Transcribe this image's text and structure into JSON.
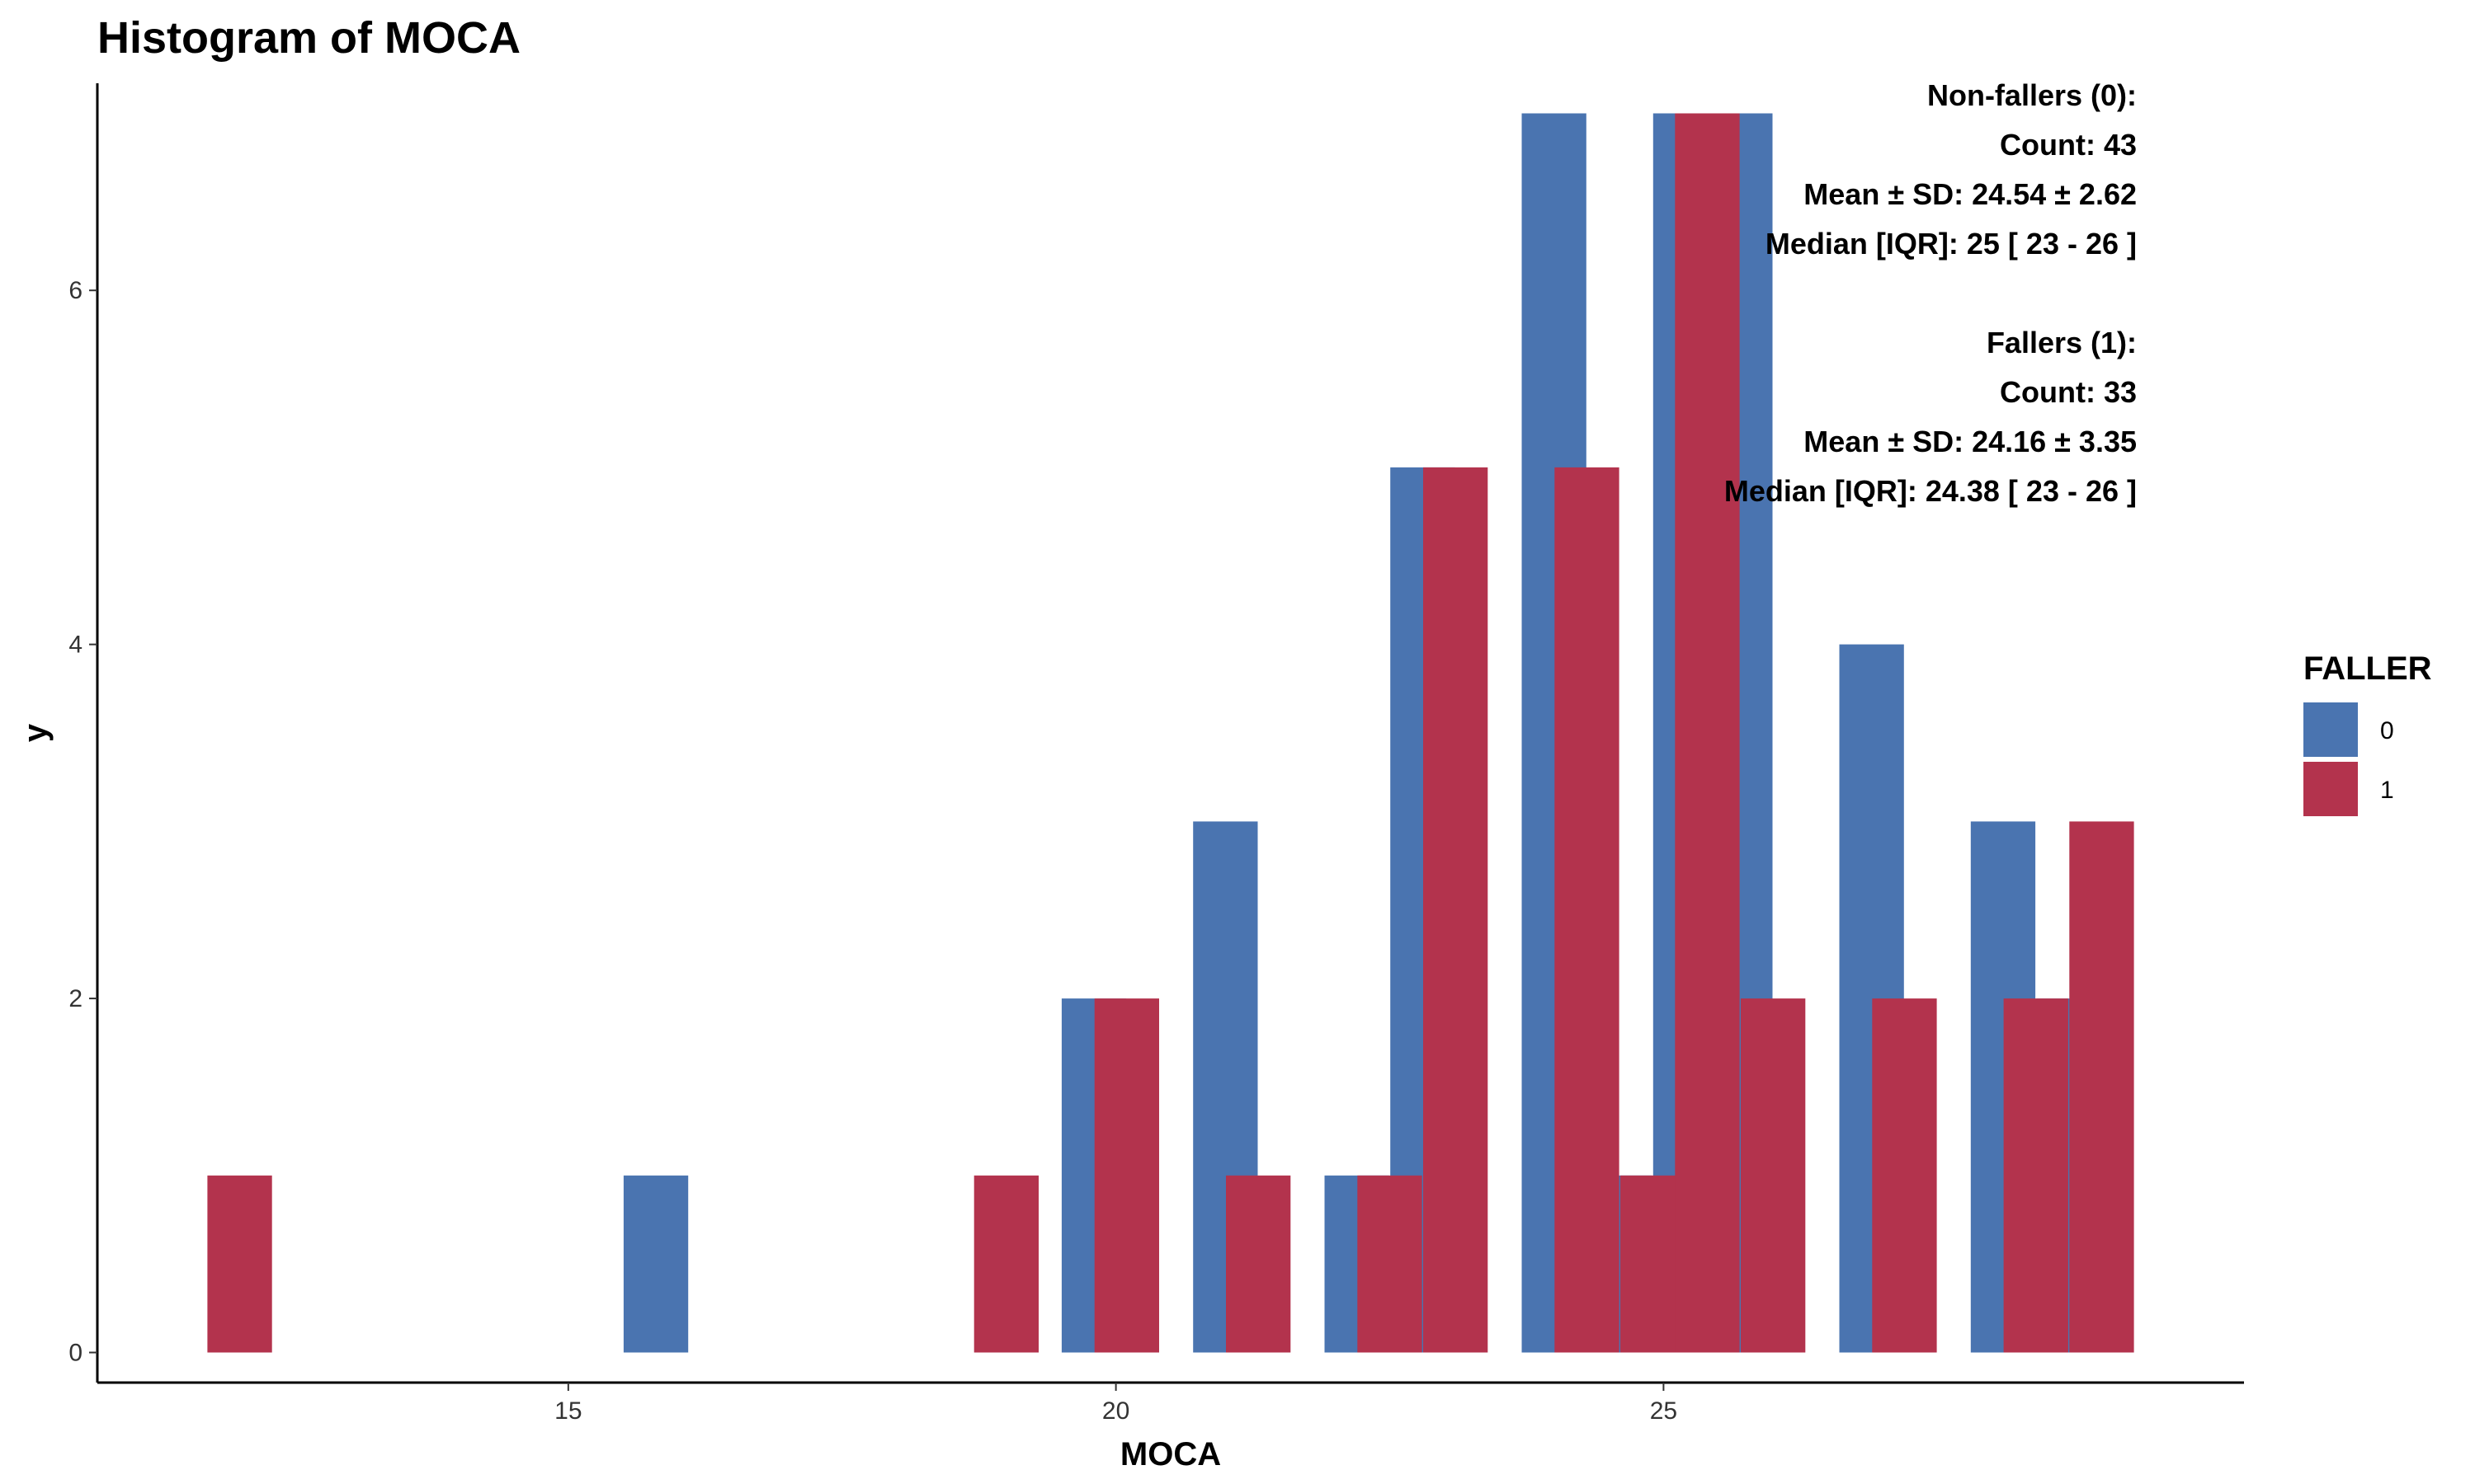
{
  "chart_data": {
    "type": "bar",
    "title": "Histogram of MOCA",
    "xlabel": "MOCA",
    "ylabel": "y",
    "xlim": [
      10.7,
      30.3
    ],
    "ylim": [
      -0.17,
      7.17
    ],
    "xticks": [
      15,
      20,
      25
    ],
    "yticks": [
      0,
      2,
      4,
      6
    ],
    "bin_width": 1.18,
    "grid": false,
    "legend": {
      "title": "FALLER",
      "placement": "right"
    },
    "series": [
      {
        "name": "0",
        "color": "#4A74B0",
        "bins": [
          {
            "x": 15.8,
            "count": 1
          },
          {
            "x": 19.8,
            "count": 2
          },
          {
            "x": 21.0,
            "count": 3
          },
          {
            "x": 22.2,
            "count": 1
          },
          {
            "x": 22.8,
            "count": 5
          },
          {
            "x": 24.0,
            "count": 7
          },
          {
            "x": 24.6,
            "count": 1
          },
          {
            "x": 25.2,
            "count": 7
          },
          {
            "x": 25.7,
            "count": 7
          },
          {
            "x": 26.9,
            "count": 4
          },
          {
            "x": 28.1,
            "count": 3
          },
          {
            "x": 28.7,
            "count": 2
          }
        ]
      },
      {
        "name": "1",
        "color": "#B3334D",
        "bins": [
          {
            "x": 12.0,
            "count": 1
          },
          {
            "x": 19.0,
            "count": 1
          },
          {
            "x": 20.1,
            "count": 2
          },
          {
            "x": 21.3,
            "count": 1
          },
          {
            "x": 22.5,
            "count": 1
          },
          {
            "x": 23.1,
            "count": 5
          },
          {
            "x": 24.3,
            "count": 5
          },
          {
            "x": 24.9,
            "count": 1
          },
          {
            "x": 25.4,
            "count": 7
          },
          {
            "x": 26.0,
            "count": 2
          },
          {
            "x": 27.2,
            "count": 2
          },
          {
            "x": 28.4,
            "count": 2
          },
          {
            "x": 29.0,
            "count": 3
          }
        ]
      }
    ],
    "annotations": [
      "Non-fallers (0):",
      "Count: 43",
      "Mean ± SD: 24.54 ± 2.62",
      "Median [IQR]: 25 [ 23 - 26 ]",
      "",
      "Fallers (1):",
      "Count: 33",
      "Mean ± SD: 24.16 ± 3.35",
      "Median [IQR]: 24.38 [ 23 - 26 ]"
    ]
  }
}
